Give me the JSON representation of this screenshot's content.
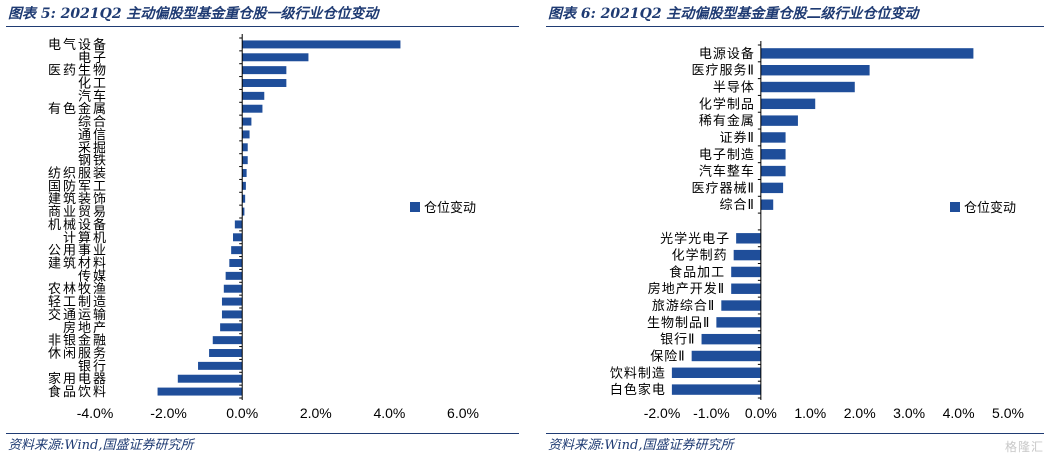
{
  "charts": [
    {
      "title": "图表 5:  2021Q2 主动偏股型基金重仓股一级行业仓位变动",
      "source": "资料来源:Wind,国盛证券研究所",
      "chart_data": {
        "type": "bar",
        "orientation": "horizontal",
        "categories": [
          "电气设备",
          "电子",
          "医药生物",
          "化工",
          "汽车",
          "有色金属",
          "综合",
          "通信",
          "采掘",
          "钢铁",
          "纺织服装",
          "国防军工",
          "建筑装饰",
          "商业贸易",
          "机械设备",
          "计算机",
          "公用事业",
          "建筑材料",
          "传媒",
          "农林牧渔",
          "轻工制造",
          "交通运输",
          "房地产",
          "非银金融",
          "休闲服务",
          "银行",
          "家用电器",
          "食品饮料"
        ],
        "series": [
          {
            "name": "仓位变动",
            "values": [
              4.3,
              1.8,
              1.2,
              1.2,
              0.6,
              0.55,
              0.25,
              0.2,
              0.15,
              0.15,
              0.12,
              0.1,
              0.08,
              0.06,
              -0.2,
              -0.25,
              -0.3,
              -0.35,
              -0.45,
              -0.5,
              -0.55,
              -0.55,
              -0.6,
              -0.8,
              -0.9,
              -1.2,
              -1.75,
              -2.3
            ]
          }
        ],
        "xlim": [
          -4,
          6
        ],
        "xticks": [
          -4,
          -2,
          0,
          2,
          4,
          6
        ],
        "xtick_labels": [
          "-4.0%",
          "-2.0%",
          "0.0%",
          "2.0%",
          "4.0%",
          "6.0%"
        ],
        "unit": "%",
        "legend": "right",
        "grid": false,
        "color": "#1f4e9a"
      }
    },
    {
      "title": "图表 6:  2021Q2 主动偏股型基金重仓股二级行业仓位变动",
      "source": "资料来源:Wind,国盛证券研究所",
      "chart_data": {
        "type": "bar",
        "orientation": "horizontal",
        "categories": [
          "电源设备",
          "医疗服务Ⅱ",
          "半导体",
          "化学制品",
          "稀有金属",
          "证券Ⅱ",
          "电子制造",
          "汽车整车",
          "医疗器械Ⅱ",
          "综合Ⅱ",
          "",
          "光学光电子",
          "化学制药",
          "食品加工",
          "房地产开发Ⅱ",
          "旅游综合Ⅱ",
          "生物制品Ⅱ",
          "银行Ⅱ",
          "保险Ⅱ",
          "饮料制造",
          "白色家电"
        ],
        "series": [
          {
            "name": "仓位变动",
            "values": [
              4.3,
              2.2,
              1.9,
              1.1,
              0.75,
              0.5,
              0.5,
              0.5,
              0.45,
              0.25,
              null,
              -0.5,
              -0.55,
              -0.6,
              -0.6,
              -0.8,
              -0.9,
              -1.2,
              -1.4,
              -1.8,
              -1.8
            ]
          }
        ],
        "xlim": [
          -2,
          5
        ],
        "xticks": [
          -2,
          -1,
          0,
          1,
          2,
          3,
          4,
          5
        ],
        "xtick_labels": [
          "-2.0%",
          "-1.0%",
          "0.0%",
          "1.0%",
          "2.0%",
          "3.0%",
          "4.0%",
          "5.0%"
        ],
        "unit": "%",
        "legend": "right",
        "grid": false,
        "color": "#1f4e9a"
      }
    }
  ],
  "watermark": "格隆汇"
}
